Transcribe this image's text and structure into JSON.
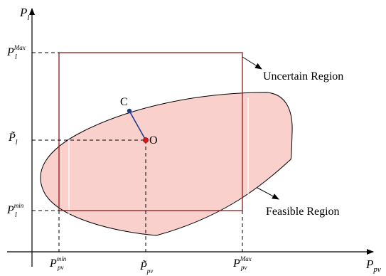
{
  "axes": {
    "y": {
      "symbol": "P",
      "subscript": "l"
    },
    "x": {
      "symbol": "P",
      "subscript": "pv"
    }
  },
  "y_ticks": {
    "max": {
      "symbol": "P",
      "subscript": "l",
      "superscript": "Max"
    },
    "nominal": {
      "symbol": "P̃",
      "subscript": "l"
    },
    "min": {
      "symbol": "P",
      "subscript": "l",
      "superscript": "min"
    }
  },
  "x_ticks": {
    "min": {
      "symbol": "P",
      "subscript": "pv",
      "superscript": "min"
    },
    "nominal": {
      "symbol": "P̃",
      "subscript": "pv"
    },
    "max": {
      "symbol": "P",
      "subscript": "pv",
      "superscript": "Max"
    }
  },
  "points": {
    "c_label": "C",
    "o_label": "O"
  },
  "labels": {
    "uncertain_region": "Uncertain Region",
    "feasible_region": "Feasible Region"
  },
  "colors": {
    "feasible_fill": "#f9d0cc",
    "uncertain_border": "#8b1a1a",
    "segment": "#1f3d8a",
    "point_o": "#d7191c",
    "point_c": "#1f3d8a"
  }
}
